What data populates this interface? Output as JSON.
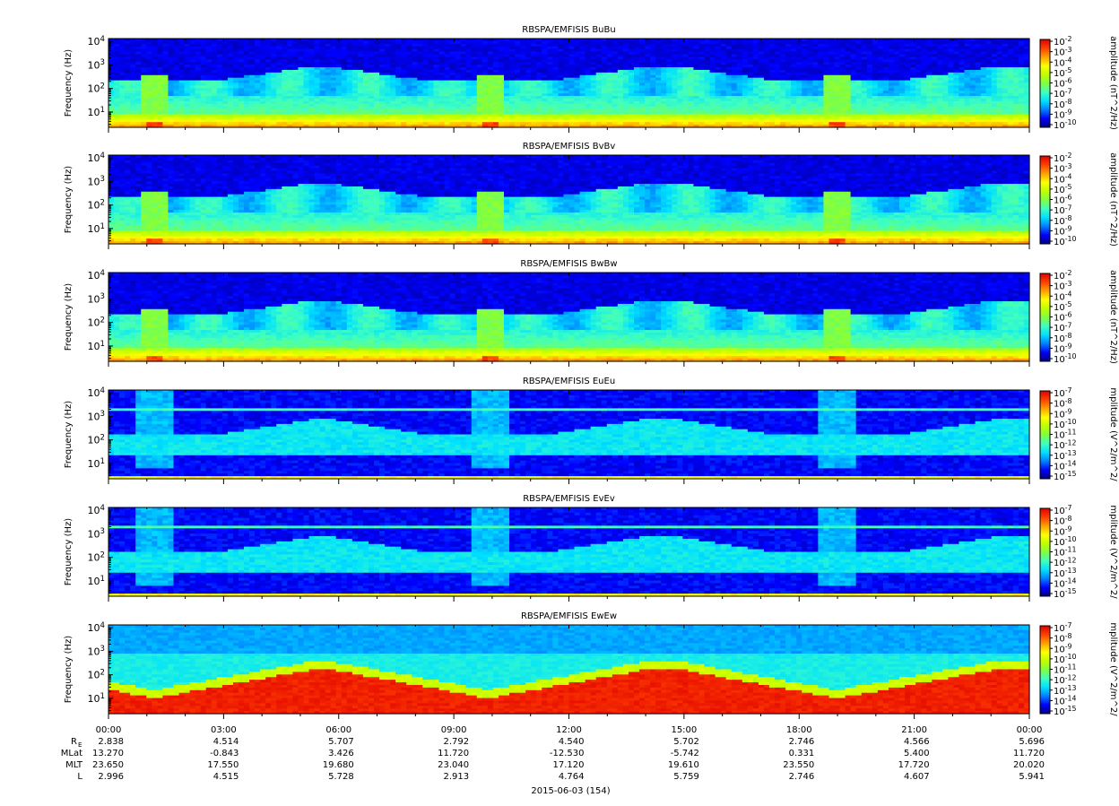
{
  "chart_data": {
    "type": "heatmap",
    "y_axis": {
      "label": "Frequency (Hz)",
      "scale": "log",
      "ticks": [
        "10^4",
        "10^3",
        "10^2",
        "10^1"
      ]
    },
    "x_axis": {
      "tick_labels": [
        "00:00",
        "03:00",
        "06:00",
        "09:00",
        "12:00",
        "15:00",
        "18:00",
        "21:00",
        "00:00"
      ],
      "tick_hours": [
        0,
        3,
        6,
        9,
        12,
        15,
        18,
        21,
        24
      ],
      "minor_interval_hours": 1,
      "date_label": "2015-06-03 (154)"
    },
    "panels": [
      {
        "title": "RBSPA/EMFISIS  BuBu",
        "colorbar_label": "amplitude (nT^2/Hz)",
        "colorbar_ticks": [
          "10^-2",
          "10^-3",
          "10^-4",
          "10^-5",
          "10^-6",
          "10^-7",
          "10^-8",
          "10^-9",
          "10^-10"
        ],
        "kind": "B"
      },
      {
        "title": "RBSPA/EMFISIS  BvBv",
        "colorbar_label": "amplitude (nT^2/Hz)",
        "colorbar_ticks": [
          "10^-2",
          "10^-3",
          "10^-4",
          "10^-5",
          "10^-6",
          "10^-7",
          "10^-8",
          "10^-9",
          "10^-10"
        ],
        "kind": "B"
      },
      {
        "title": "RBSPA/EMFISIS  BwBw",
        "colorbar_label": "amplitude (nT^2/Hz)",
        "colorbar_ticks": [
          "10^-2",
          "10^-3",
          "10^-4",
          "10^-5",
          "10^-6",
          "10^-7",
          "10^-8",
          "10^-9",
          "10^-10"
        ],
        "kind": "B"
      },
      {
        "title": "RBSPA/EMFISIS  EuEu",
        "colorbar_label": "mplitude (V^2/m^2/",
        "colorbar_ticks": [
          "10^-7",
          "10^-8",
          "10^-9",
          "10^-10",
          "10^-11",
          "10^-12",
          "10^-13",
          "10^-14",
          "10^-15"
        ],
        "kind": "E"
      },
      {
        "title": "RBSPA/EMFISIS  EvEv",
        "colorbar_label": "mplitude (V^2/m^2/",
        "colorbar_ticks": [
          "10^-7",
          "10^-8",
          "10^-9",
          "10^-10",
          "10^-11",
          "10^-12",
          "10^-13",
          "10^-14",
          "10^-15"
        ],
        "kind": "E"
      },
      {
        "title": "RBSPA/EMFISIS  EwEw",
        "colorbar_label": "mplitude (V^2/m^2/",
        "colorbar_ticks": [
          "10^-7",
          "10^-8",
          "10^-9",
          "10^-10",
          "10^-11",
          "10^-12",
          "10^-13",
          "10^-14",
          "10^-15"
        ],
        "kind": "Ew"
      }
    ],
    "ephemeris": {
      "rows": [
        {
          "label": "R",
          "subscript": "E",
          "values": [
            "2.838",
            "4.514",
            "5.707",
            "2.792",
            "4.540",
            "5.702",
            "2.746",
            "4.566",
            "5.696"
          ]
        },
        {
          "label": "MLat",
          "subscript": "",
          "values": [
            "13.270",
            "-0.843",
            "3.426",
            "11.720",
            "-12.530",
            "-5.742",
            "0.331",
            "5.400",
            "11.720"
          ]
        },
        {
          "label": "MLT",
          "subscript": "",
          "values": [
            "23.650",
            "17.550",
            "19.680",
            "23.040",
            "17.120",
            "19.610",
            "23.550",
            "17.720",
            "20.020"
          ]
        },
        {
          "label": "L",
          "subscript": "",
          "values": [
            "2.996",
            "4.515",
            "5.728",
            "2.913",
            "4.764",
            "5.759",
            "2.746",
            "4.607",
            "5.941"
          ]
        }
      ]
    },
    "perigee_hours": [
      1.2,
      9.9,
      19.0
    ],
    "colormap": [
      "#00007f",
      "#0000ff",
      "#0080ff",
      "#00e0ff",
      "#40ffbf",
      "#80ff40",
      "#c0ff00",
      "#ffff00",
      "#ffa000",
      "#ff4000",
      "#e00000"
    ]
  }
}
